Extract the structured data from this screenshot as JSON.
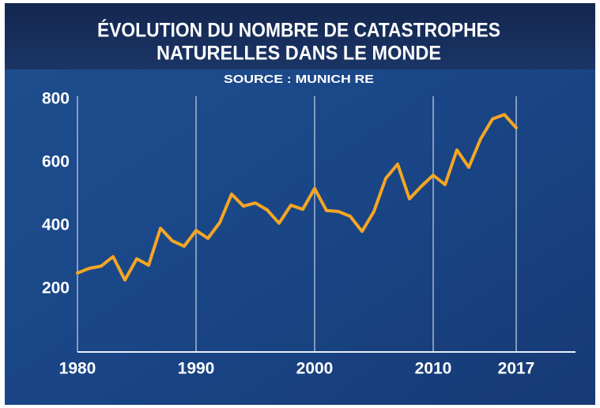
{
  "chart_data": {
    "type": "line",
    "title": [
      "ÉVOLUTION DU NOMBRE DE CATASTROPHES",
      "NATURELLES DANS LE MONDE"
    ],
    "subtitle": "SOURCE : MUNICH RE",
    "x": [
      1980,
      1981,
      1982,
      1983,
      1984,
      1985,
      1986,
      1987,
      1988,
      1989,
      1990,
      1991,
      1992,
      1993,
      1994,
      1995,
      1996,
      1997,
      1998,
      1999,
      2000,
      2001,
      2002,
      2003,
      2004,
      2005,
      2006,
      2007,
      2008,
      2009,
      2010,
      2011,
      2012,
      2013,
      2014,
      2015,
      2016,
      2017
    ],
    "series": [
      {
        "color": "#f5a623",
        "values": [
          250,
          265,
          272,
          302,
          228,
          295,
          275,
          392,
          352,
          335,
          385,
          360,
          410,
          500,
          462,
          472,
          450,
          408,
          465,
          452,
          518,
          448,
          445,
          430,
          382,
          445,
          550,
          595,
          485,
          525,
          560,
          530,
          640,
          585,
          675,
          738,
          752,
          710
        ]
      }
    ],
    "xlim": [
      1980,
      2022
    ],
    "xticks": [
      1980,
      1990,
      2000,
      2010,
      2017
    ],
    "ylim": [
      0,
      800
    ],
    "yticks": [
      200,
      400,
      600,
      800
    ],
    "grid": true
  }
}
